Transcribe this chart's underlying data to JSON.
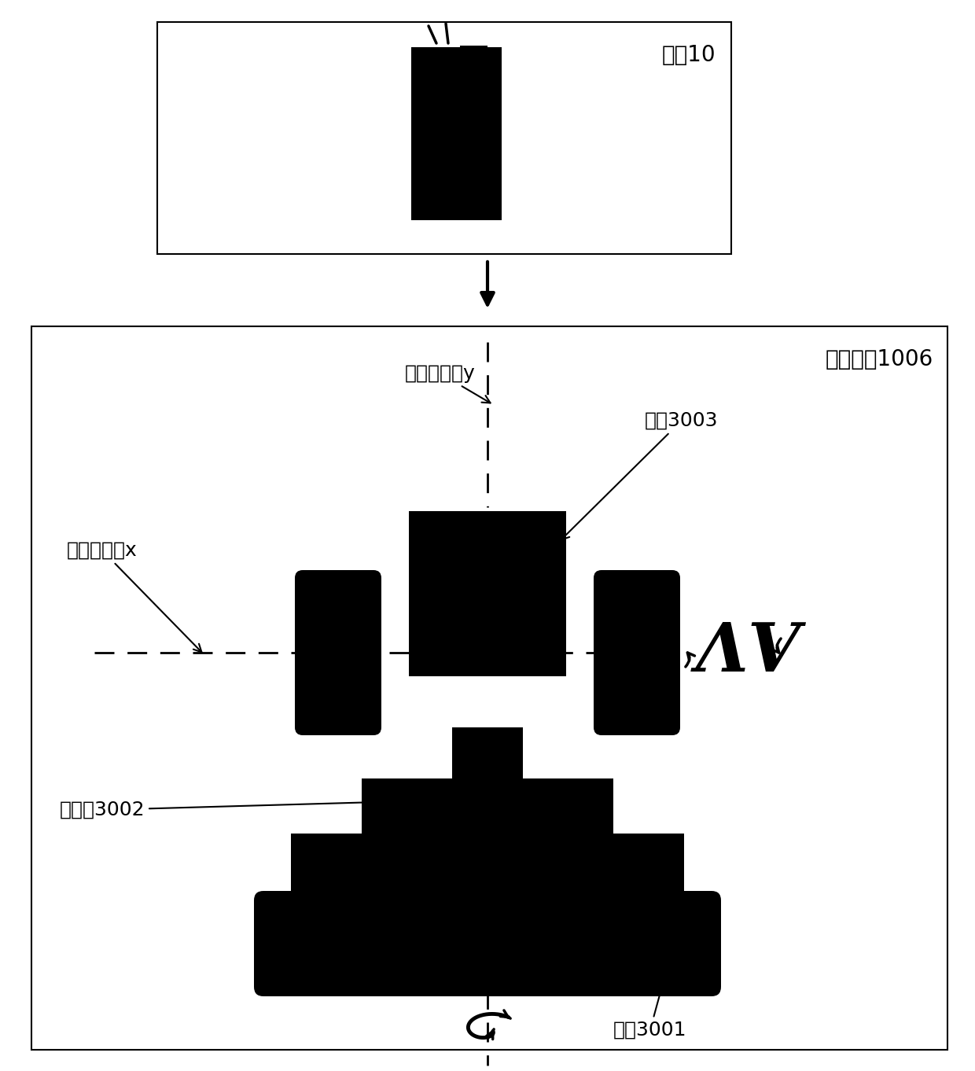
{
  "bg_color": "#ffffff",
  "title_top": "终端10",
  "title_bottom": "旋转装置1006",
  "label_axis2": "第二枢转轴y",
  "label_axis1": "第一枢转轴x",
  "label_cradle": "卡座3003",
  "label_table": "旋转台3002",
  "label_base": "底座3001",
  "font_size_label": 18,
  "font_size_title": 20
}
